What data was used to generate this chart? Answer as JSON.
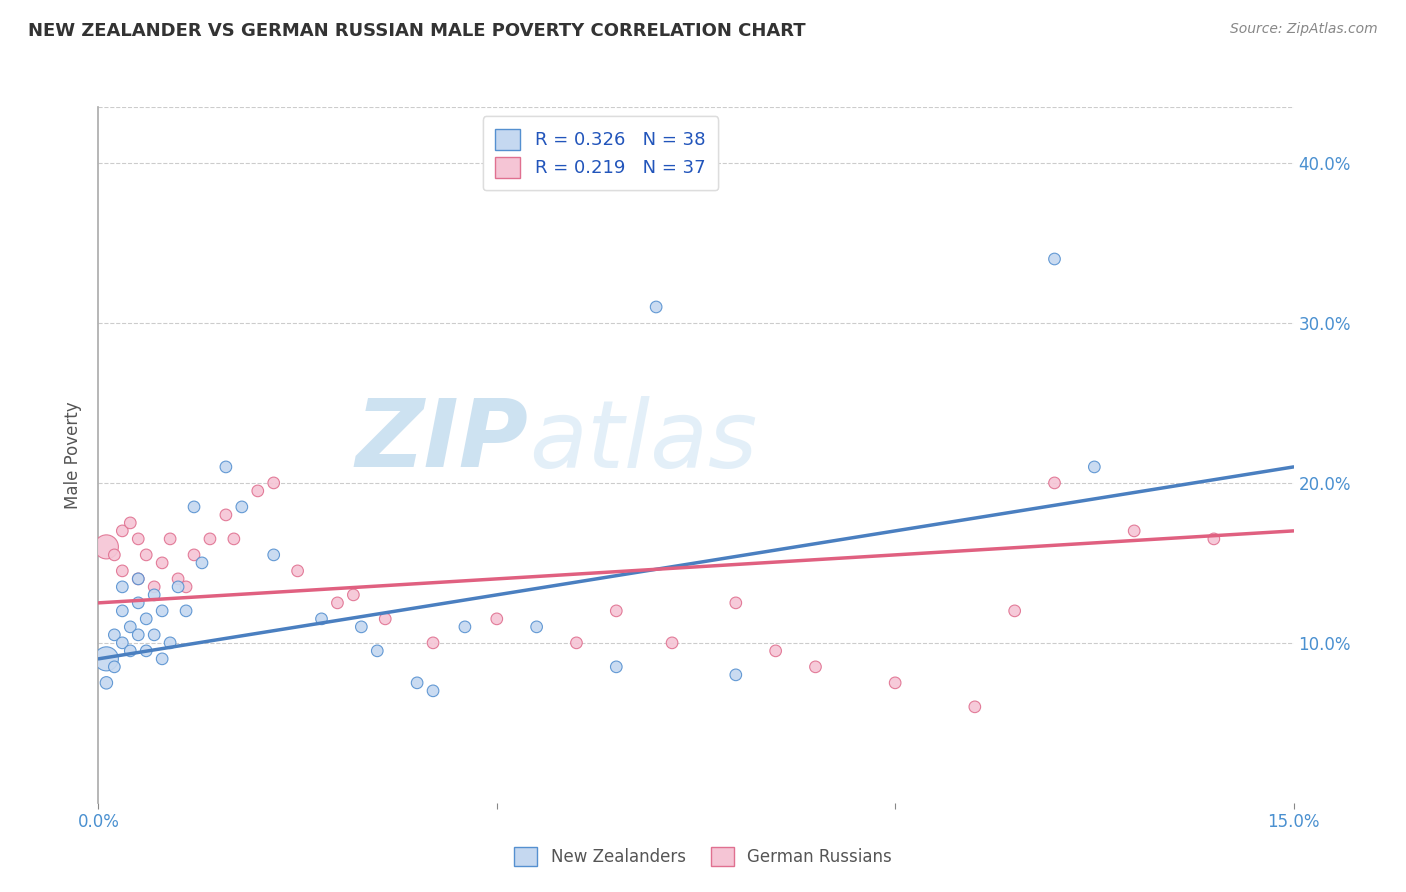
{
  "title": "NEW ZEALANDER VS GERMAN RUSSIAN MALE POVERTY CORRELATION CHART",
  "source": "Source: ZipAtlas.com",
  "ylabel": "Male Poverty",
  "xlim": [
    0.0,
    0.15
  ],
  "ylim": [
    0.0,
    0.435
  ],
  "xticks": [
    0.0,
    0.05,
    0.1,
    0.15
  ],
  "xtick_labels": [
    "0.0%",
    "",
    "",
    "15.0%"
  ],
  "ytick_positions": [
    0.1,
    0.2,
    0.3,
    0.4
  ],
  "ytick_labels": [
    "10.0%",
    "20.0%",
    "30.0%",
    "40.0%"
  ],
  "legend_line1": "R = 0.326   N = 38",
  "legend_line2": "R = 0.219   N = 37",
  "legend_label1": "New Zealanders",
  "legend_label2": "German Russians",
  "blue_fill": "#c5d8f0",
  "pink_fill": "#f5c5d5",
  "blue_edge": "#5590d0",
  "pink_edge": "#e07090",
  "blue_line": "#4a7fc0",
  "pink_line": "#e06080",
  "title_color": "#333333",
  "source_color": "#888888",
  "legend_text_color": "#2255bb",
  "watermark_zip_color": "#c8dff0",
  "watermark_atlas_color": "#e0eef8",
  "nz_x": [
    0.001,
    0.001,
    0.002,
    0.002,
    0.003,
    0.003,
    0.003,
    0.004,
    0.004,
    0.005,
    0.005,
    0.005,
    0.006,
    0.006,
    0.007,
    0.007,
    0.008,
    0.008,
    0.009,
    0.01,
    0.011,
    0.012,
    0.013,
    0.016,
    0.018,
    0.022,
    0.028,
    0.033,
    0.035,
    0.04,
    0.042,
    0.046,
    0.055,
    0.065,
    0.07,
    0.08,
    0.12,
    0.125
  ],
  "nz_y": [
    0.09,
    0.075,
    0.105,
    0.085,
    0.135,
    0.12,
    0.1,
    0.11,
    0.095,
    0.14,
    0.125,
    0.105,
    0.115,
    0.095,
    0.13,
    0.105,
    0.12,
    0.09,
    0.1,
    0.135,
    0.12,
    0.185,
    0.15,
    0.21,
    0.185,
    0.155,
    0.115,
    0.11,
    0.095,
    0.075,
    0.07,
    0.11,
    0.11,
    0.085,
    0.31,
    0.08,
    0.34,
    0.21
  ],
  "nz_sizes": [
    300,
    80,
    70,
    70,
    70,
    70,
    70,
    70,
    70,
    70,
    70,
    70,
    70,
    70,
    70,
    70,
    70,
    70,
    70,
    70,
    70,
    70,
    70,
    70,
    70,
    70,
    70,
    70,
    70,
    70,
    70,
    70,
    70,
    70,
    70,
    70,
    70,
    70
  ],
  "gr_x": [
    0.001,
    0.002,
    0.003,
    0.003,
    0.004,
    0.005,
    0.005,
    0.006,
    0.007,
    0.008,
    0.009,
    0.01,
    0.011,
    0.012,
    0.014,
    0.016,
    0.017,
    0.02,
    0.022,
    0.025,
    0.03,
    0.032,
    0.036,
    0.042,
    0.05,
    0.06,
    0.065,
    0.072,
    0.08,
    0.085,
    0.09,
    0.1,
    0.11,
    0.115,
    0.12,
    0.13,
    0.14
  ],
  "gr_y": [
    0.16,
    0.155,
    0.145,
    0.17,
    0.175,
    0.14,
    0.165,
    0.155,
    0.135,
    0.15,
    0.165,
    0.14,
    0.135,
    0.155,
    0.165,
    0.18,
    0.165,
    0.195,
    0.2,
    0.145,
    0.125,
    0.13,
    0.115,
    0.1,
    0.115,
    0.1,
    0.12,
    0.1,
    0.125,
    0.095,
    0.085,
    0.075,
    0.06,
    0.12,
    0.2,
    0.17,
    0.165
  ],
  "gr_sizes": [
    300,
    70,
    70,
    70,
    70,
    70,
    70,
    70,
    70,
    70,
    70,
    70,
    70,
    70,
    70,
    70,
    70,
    70,
    70,
    70,
    70,
    70,
    70,
    70,
    70,
    70,
    70,
    70,
    70,
    70,
    70,
    70,
    70,
    70,
    70,
    70,
    70
  ],
  "nz_trend": [
    0.09,
    0.21
  ],
  "gr_trend": [
    0.125,
    0.17
  ]
}
